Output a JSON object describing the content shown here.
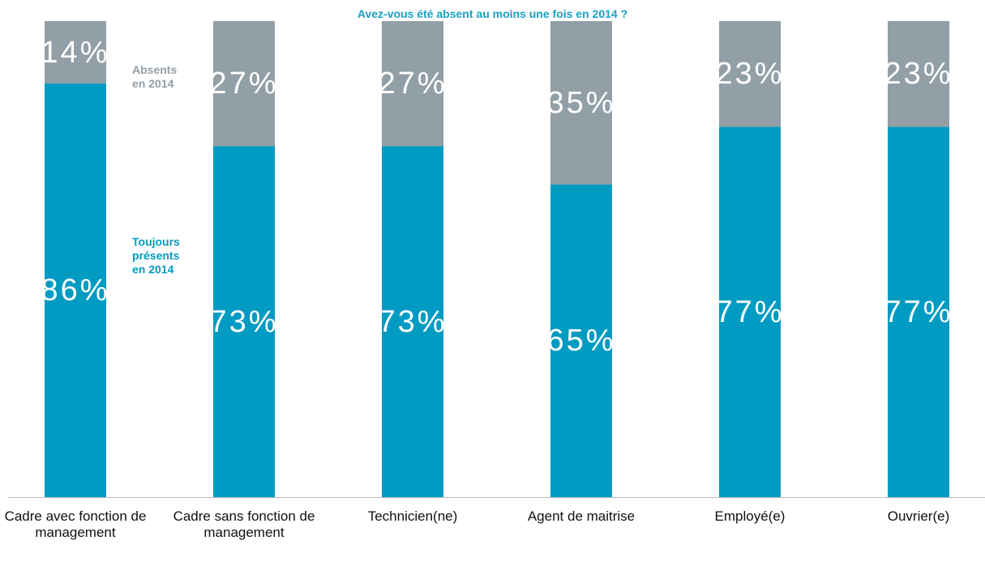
{
  "chart_data": {
    "type": "stacked_bar",
    "title": "Avez-vous été absent au moins une fois en 2014 ?",
    "categories": [
      "Cadre avec fonction de management",
      "Cadre sans fonction de management",
      "Technicien(ne)",
      "Agent de maitrise",
      "Employé(e)",
      "Ouvrier(e)"
    ],
    "series": [
      {
        "name": "Toujours présents en 2014",
        "color": "#009bc2",
        "values": [
          86,
          73,
          73,
          65,
          77,
          77
        ],
        "value_labels": [
          "86%",
          "73%",
          "73%",
          "65%",
          "77%",
          "77%"
        ]
      },
      {
        "name": "Absents en 2014",
        "color": "#939fa6",
        "values": [
          14,
          27,
          27,
          35,
          23,
          23
        ],
        "value_labels": [
          "14%",
          "27%",
          "27%",
          "35%",
          "23%",
          "23%"
        ]
      }
    ],
    "ylim": [
      0,
      100
    ]
  }
}
